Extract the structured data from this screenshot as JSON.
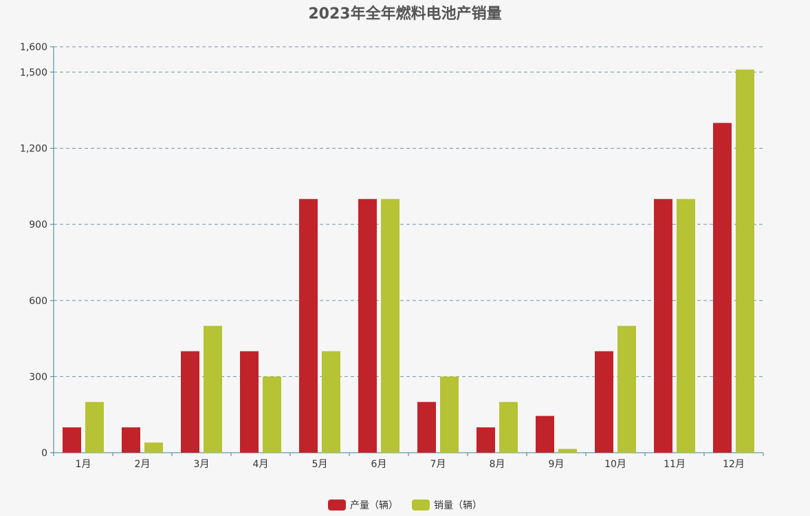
{
  "title": "2023年全年燃料电池产销量",
  "colors": {
    "series0": "#c1232b",
    "series1": "#b5c334",
    "axis": "#3f7f93",
    "grid": "#6e96a3",
    "tick_text": "#333333"
  },
  "chart_data": {
    "type": "bar",
    "title": "2023年全年燃料电池产销量",
    "categories": [
      "1月",
      "2月",
      "3月",
      "4月",
      "5月",
      "6月",
      "7月",
      "8月",
      "9月",
      "10月",
      "11月",
      "12月"
    ],
    "series": [
      {
        "name": "产量（辆）",
        "values": [
          100,
          100,
          400,
          400,
          1000,
          1000,
          200,
          100,
          145,
          400,
          1000,
          1300
        ]
      },
      {
        "name": "销量（辆）",
        "values": [
          200,
          40,
          500,
          300,
          400,
          1000,
          300,
          200,
          15,
          500,
          1000,
          1510
        ]
      }
    ],
    "y_ticks": [
      0,
      300,
      600,
      900,
      1200,
      1500,
      1600
    ],
    "y_tick_labels": [
      "0",
      "300",
      "600",
      "900",
      "1,200",
      "1,500",
      "1,600"
    ],
    "ylim": [
      0,
      1600
    ],
    "grid": true,
    "legend_position": "bottom-center"
  }
}
